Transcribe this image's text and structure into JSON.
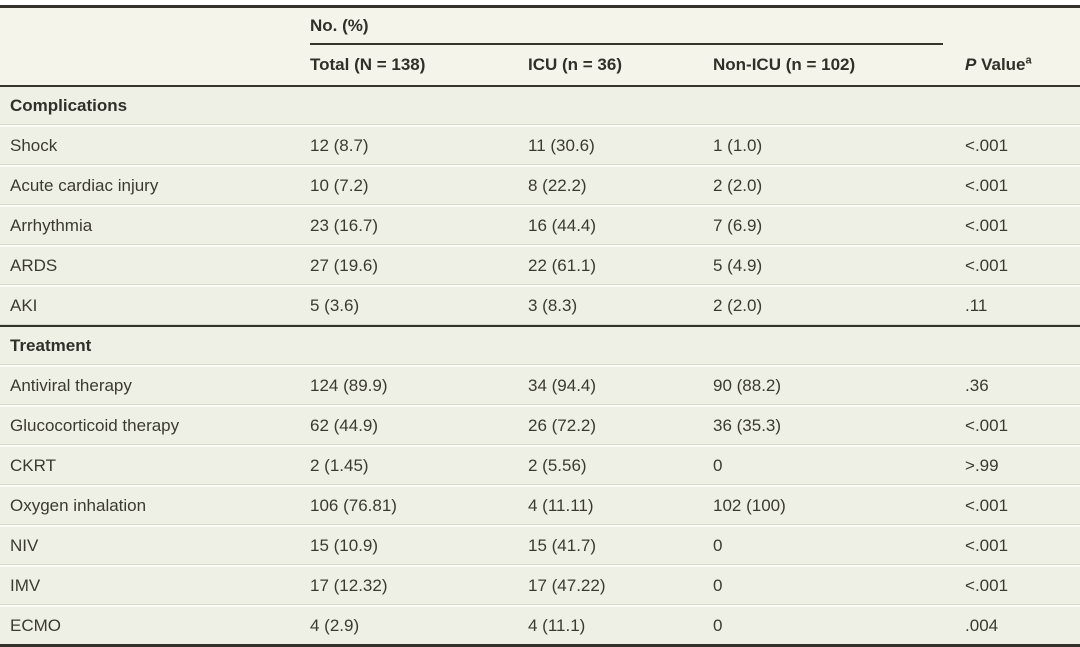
{
  "header": {
    "spanner_label": "No. (%)",
    "col_total": "Total (N = 138)",
    "col_icu": "ICU (n = 36)",
    "col_non_icu": "Non-ICU (n = 102)",
    "p_value": {
      "italic": "P",
      "rest": " Value",
      "sup": "a"
    }
  },
  "sections": [
    {
      "title": "Complications",
      "rows": [
        {
          "label": "Shock",
          "total": "12 (8.7)",
          "icu": "11 (30.6)",
          "non_icu": "1 (1.0)",
          "p": "<.001"
        },
        {
          "label": "Acute cardiac injury",
          "total": "10 (7.2)",
          "icu": "8 (22.2)",
          "non_icu": "2 (2.0)",
          "p": "<.001"
        },
        {
          "label": "Arrhythmia",
          "total": "23 (16.7)",
          "icu": "16 (44.4)",
          "non_icu": "7 (6.9)",
          "p": "<.001"
        },
        {
          "label": "ARDS",
          "total": "27 (19.6)",
          "icu": "22 (61.1)",
          "non_icu": "5 (4.9)",
          "p": "<.001"
        },
        {
          "label": "AKI",
          "total": "5 (3.6)",
          "icu": "3 (8.3)",
          "non_icu": "2 (2.0)",
          "p": ".11"
        }
      ]
    },
    {
      "title": "Treatment",
      "rows": [
        {
          "label": "Antiviral therapy",
          "total": "124 (89.9)",
          "icu": "34 (94.4)",
          "non_icu": "90 (88.2)",
          "p": ".36"
        },
        {
          "label": "Glucocorticoid therapy",
          "total": "62 (44.9)",
          "icu": "26 (72.2)",
          "non_icu": "36 (35.3)",
          "p": "<.001"
        },
        {
          "label": "CKRT",
          "total": "2 (1.45)",
          "icu": "2 (5.56)",
          "non_icu": "0",
          "p": ">.99"
        },
        {
          "label": "Oxygen inhalation",
          "total": "106 (76.81)",
          "icu": "4 (11.11)",
          "non_icu": "102 (100)",
          "p": "<.001"
        },
        {
          "label": "NIV",
          "total": "15 (10.9)",
          "icu": "15 (41.7)",
          "non_icu": "0",
          "p": "<.001"
        },
        {
          "label": "IMV",
          "total": "17 (12.32)",
          "icu": "17 (47.22)",
          "non_icu": "0",
          "p": "<.001"
        },
        {
          "label": "ECMO",
          "total": "4 (2.9)",
          "icu": "4 (11.1)",
          "non_icu": "0",
          "p": ".004"
        }
      ]
    }
  ],
  "colors": {
    "rule_dark": "#32322b",
    "header_bg": "#f4f4ea",
    "row_bg": "#eff0e5",
    "separator_white": "#fbfcf5",
    "separator_gray": "#d8dacb",
    "text": "#3a3a31"
  }
}
